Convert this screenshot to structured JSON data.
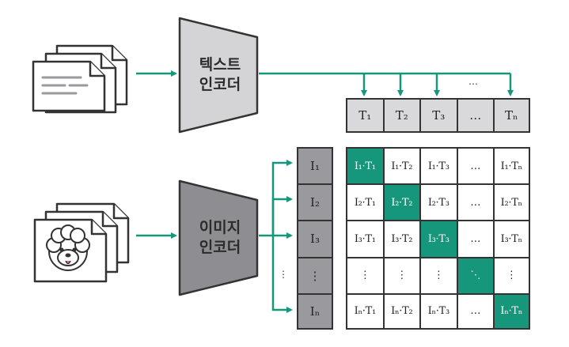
{
  "text_encoder": {
    "label": "텍스트\n인코더"
  },
  "image_encoder": {
    "label": "이미지\n인코더"
  },
  "text_embeddings": [
    "T₁",
    "T₂",
    "T₃",
    "…",
    "Tₙ"
  ],
  "image_embeddings": [
    "I₁",
    "I₂",
    "I₃",
    "⋮",
    "Iₙ"
  ],
  "top_ellipsis": "…",
  "left_ellipsis": "⋮",
  "matrix": [
    [
      "I₁·T₁",
      "I₁·T₂",
      "I₁·T₃",
      "…",
      "I₁·Tₙ"
    ],
    [
      "I₂·T₁",
      "I₂·T₂",
      "I₂·T₃",
      "…",
      "I₂·Tₙ"
    ],
    [
      "I₃·T₁",
      "I₃·T₂",
      "I₃·T₃",
      "…",
      "I₃·Tₙ"
    ],
    [
      "⋮",
      "⋮",
      "⋮",
      "⋱",
      "⋮"
    ],
    [
      "Iₙ·T₁",
      "Iₙ·T₂",
      "Iₙ·T₃",
      "…",
      "Iₙ·Tₙ"
    ]
  ],
  "colors": {
    "accent": "#16967a",
    "grid_border": "#333333",
    "text_encoder_fill": "#d4d4d6",
    "image_encoder_fill": "#8d8d92",
    "header_fill": "#d9d9db",
    "image_column_fill": "#9a9a9e"
  }
}
